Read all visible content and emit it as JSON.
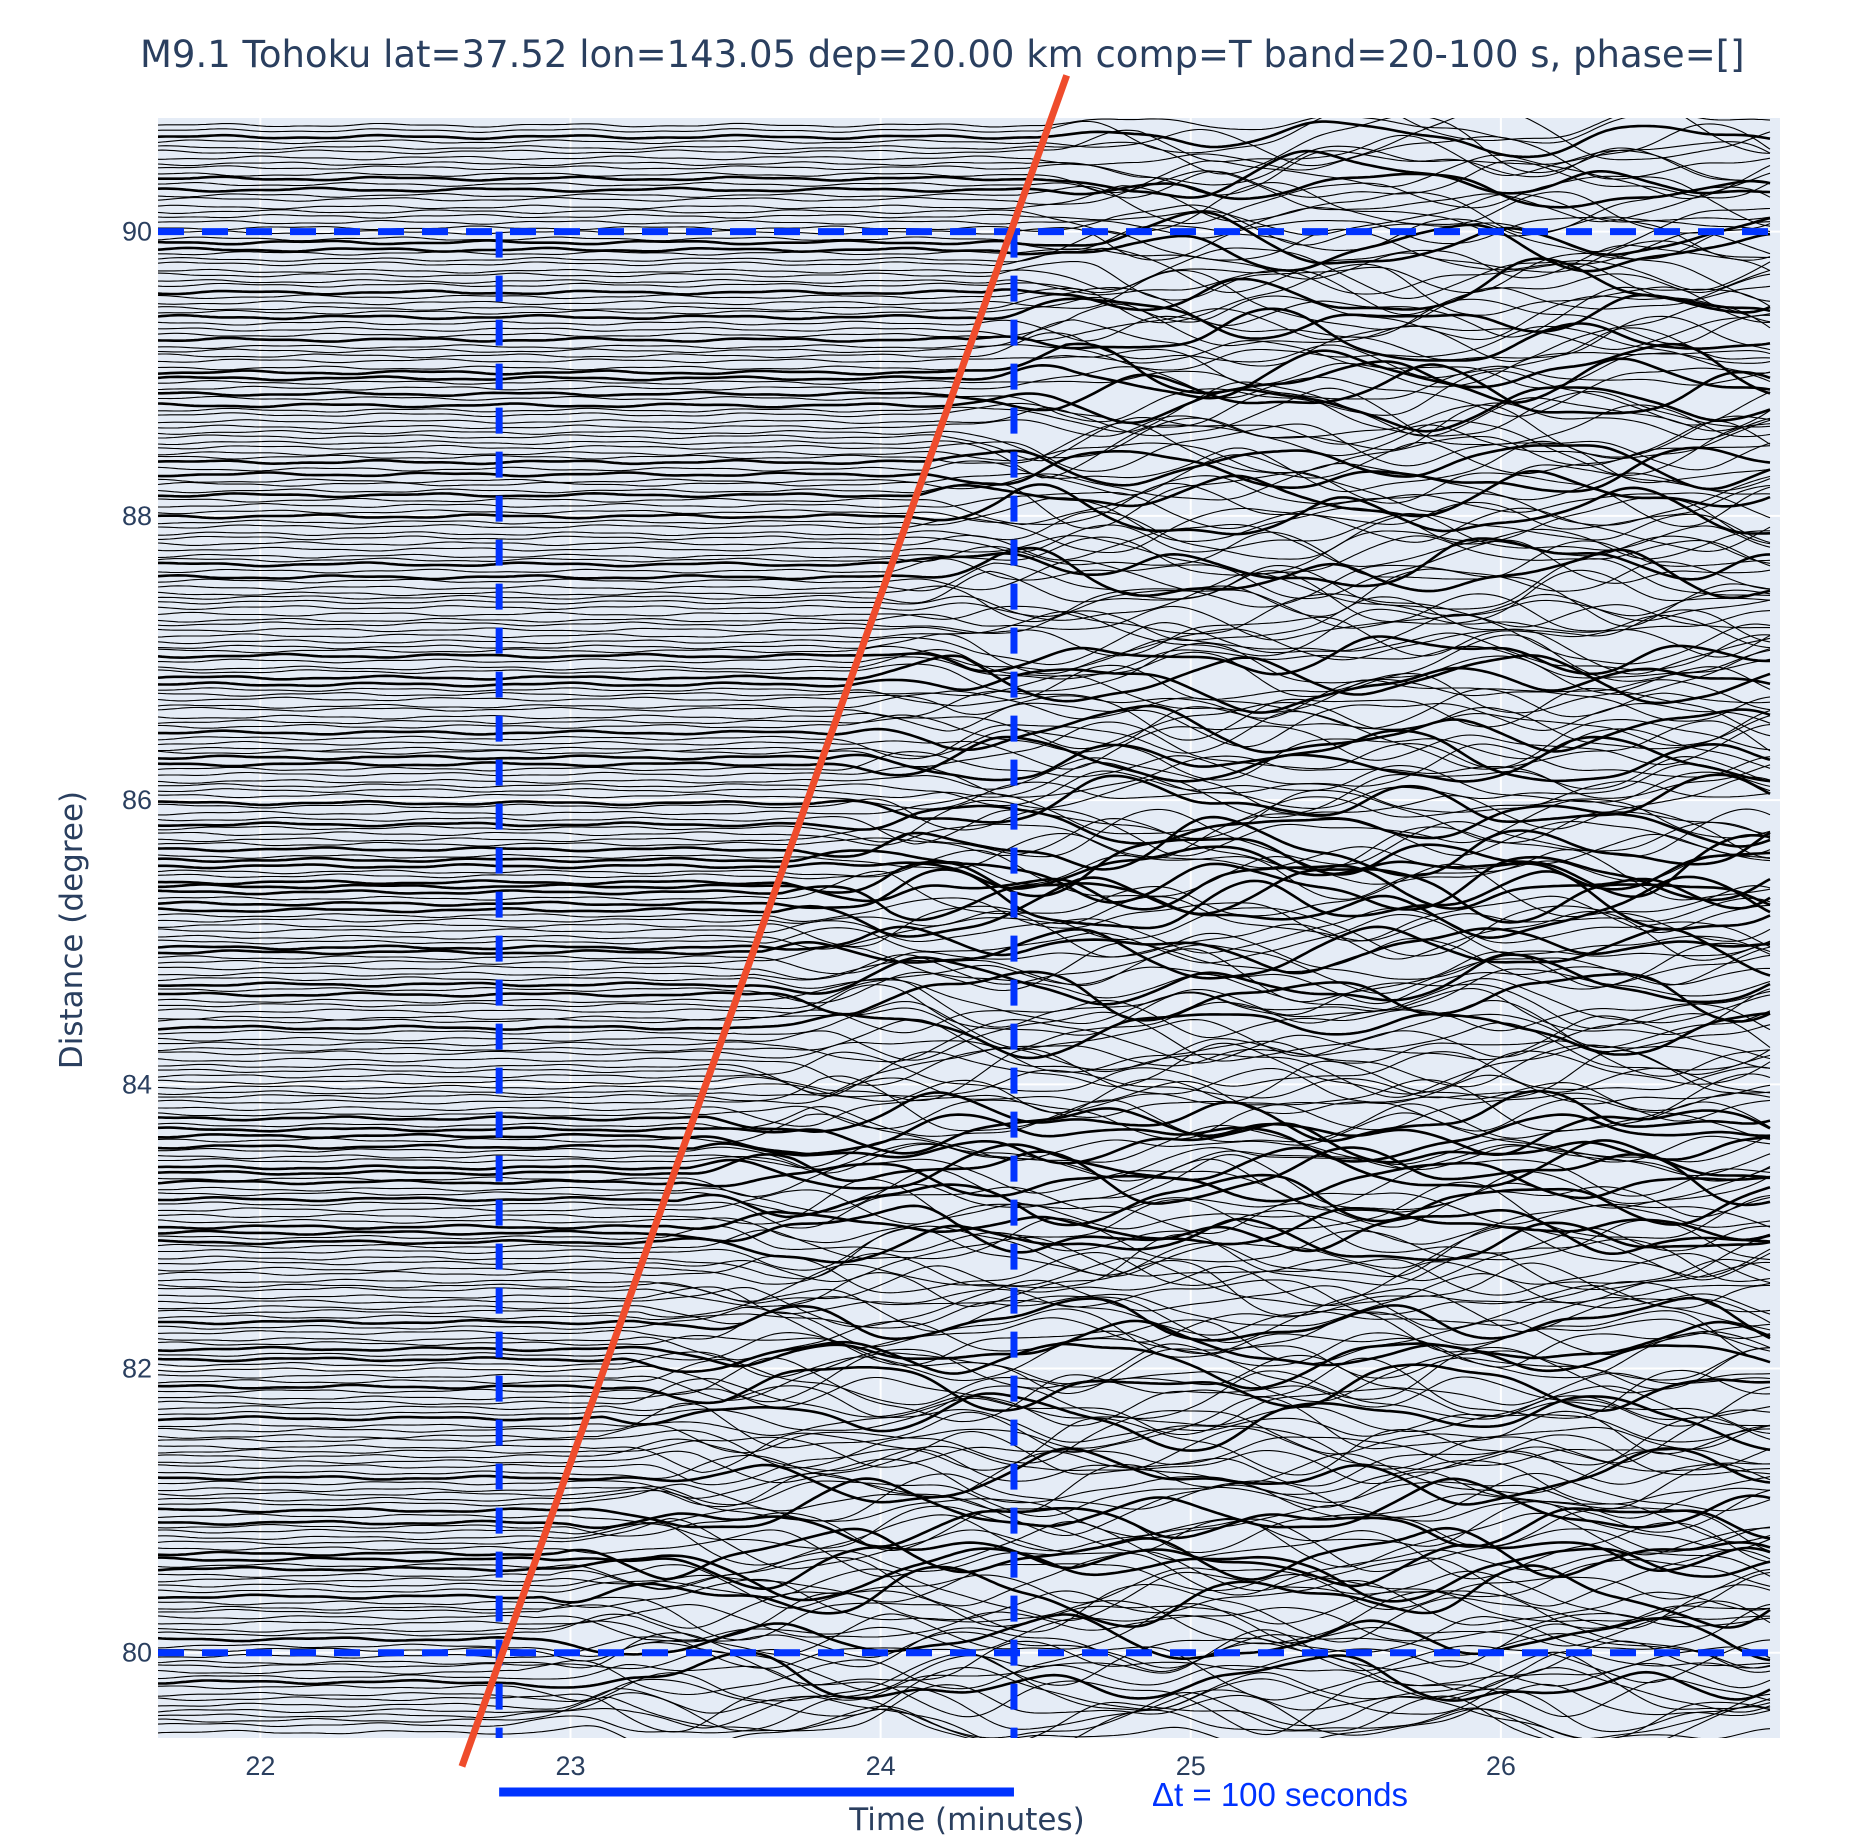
{
  "chart_data": {
    "type": "line",
    "title": "M9.1 Tohoku lat=37.52 lon=143.05 dep=20.00 km comp=T band=20-100 s, phase=[]",
    "xlabel": "Time (minutes)",
    "ylabel": "Distance (degree)",
    "xlim": [
      21.67,
      26.9
    ],
    "ylim": [
      79.4,
      90.8
    ],
    "x_ticks": [
      {
        "value": 22,
        "label": "22"
      },
      {
        "value": 23,
        "label": "23"
      },
      {
        "value": 24,
        "label": "24"
      },
      {
        "value": 25,
        "label": "25"
      },
      {
        "value": 26,
        "label": "26"
      }
    ],
    "y_ticks": [
      {
        "value": 80,
        "label": "80"
      },
      {
        "value": 82,
        "label": "82"
      },
      {
        "value": 84,
        "label": "84"
      },
      {
        "value": 86,
        "label": "86"
      },
      {
        "value": 88,
        "label": "88"
      },
      {
        "value": 90,
        "label": "90"
      }
    ],
    "grid": true,
    "colors": {
      "plot_bg": "#e5ecf6",
      "grid": "#ffffff",
      "trace": "#000000",
      "move_out_line": "#ef4c2c",
      "reference_lines": "#0033ff",
      "text": "#2a3f5f"
    },
    "waveform_traces": {
      "distance_min": 79.45,
      "distance_max": 90.75,
      "time_min": 21.67,
      "time_max": 26.87,
      "signal_onset_minutes_at_80": 22.85,
      "signal_onset_minutes_at_90": 24.4
    },
    "move_out_line": {
      "points": [
        {
          "x": 22.65,
          "y": 79.2
        },
        {
          "x": 24.6,
          "y": 91.1
        }
      ]
    },
    "reference_lines": {
      "horizontal_y": [
        80,
        90
      ],
      "vertical_x": [
        22.77,
        24.43
      ]
    },
    "time_bar": {
      "x_start": 22.77,
      "x_end": 24.43,
      "label": "Δt = 100 seconds"
    }
  }
}
